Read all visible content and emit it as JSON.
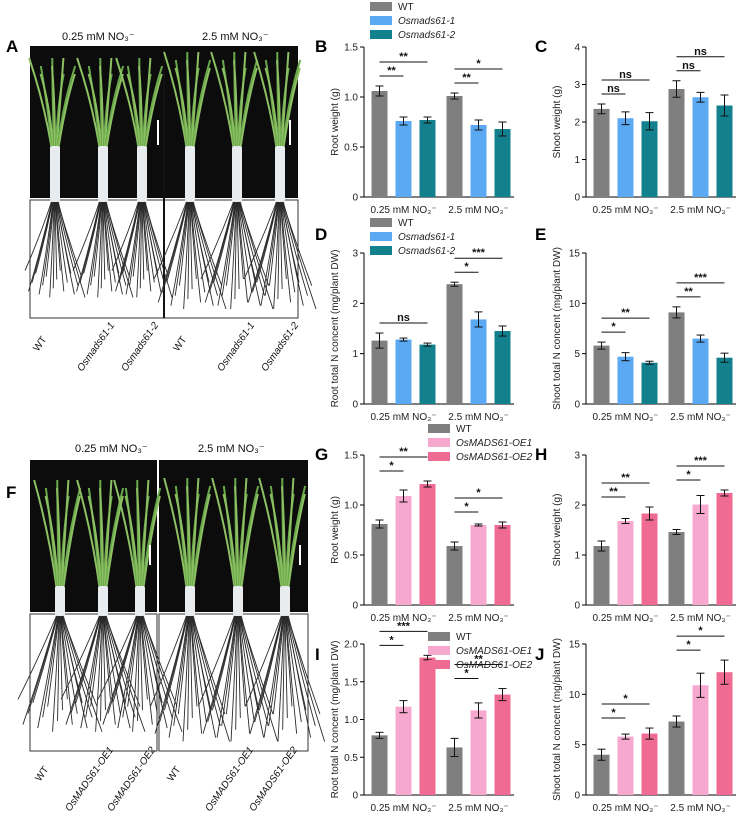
{
  "panels": {
    "A": {
      "letter": "A",
      "conditions": [
        "0.25 mM NO₃⁻",
        "2.5 mM NO₃⁻"
      ],
      "genotypes": [
        "WT",
        "Osmads61-1",
        "Osmads61-2"
      ]
    },
    "F": {
      "letter": "F",
      "conditions": [
        "0.25 mM NO₃⁻",
        "2.5 mM NO₃⁻"
      ],
      "genotypes": [
        "WT",
        "OsMADS61-OE1",
        "OsMADS61-OE2"
      ]
    }
  },
  "legend_top": [
    "WT",
    "Osmads61-1",
    "Osmads61-2"
  ],
  "legend_bottom": [
    "WT",
    "OsMADS61-OE1",
    "OsMADS61-OE2"
  ],
  "colors": {
    "top": [
      "#7f7f7f",
      "#5aa9f2",
      "#12808d"
    ],
    "bottom": [
      "#7f7f7f",
      "#f7a8cf",
      "#f06b94"
    ]
  },
  "chart_data": [
    {
      "id": "B",
      "type": "bar",
      "letter": "B",
      "categories": [
        "0.25 mM NO₃⁻",
        "2.5 mM NO₃⁻"
      ],
      "ylabel": "Root weight (g)",
      "ylim": [
        0,
        1.5
      ],
      "yticks": [
        "0",
        "0.5",
        "1.0",
        "1.5"
      ],
      "legend": true,
      "series": [
        {
          "name": "WT",
          "values": [
            1.06,
            1.01
          ],
          "err": [
            0.05,
            0.03
          ]
        },
        {
          "name": "Osmads61-1",
          "values": [
            0.76,
            0.72
          ],
          "err": [
            0.04,
            0.05
          ]
        },
        {
          "name": "Osmads61-2",
          "values": [
            0.77,
            0.68
          ],
          "err": [
            0.03,
            0.07
          ]
        }
      ],
      "sig": [
        {
          "group": 0,
          "to": 1,
          "label": "**"
        },
        {
          "group": 0,
          "to": 2,
          "label": "**"
        },
        {
          "group": 1,
          "to": 1,
          "label": "**"
        },
        {
          "group": 1,
          "to": 2,
          "label": "*"
        }
      ]
    },
    {
      "id": "C",
      "type": "bar",
      "letter": "C",
      "categories": [
        "0.25 mM NO₃⁻",
        "2.5 mM NO₃⁻"
      ],
      "ylabel": "Shoot weight (g)",
      "ylim": [
        0,
        4
      ],
      "yticks": [
        "0",
        "1",
        "2",
        "3",
        "4"
      ],
      "legend": false,
      "series": [
        {
          "name": "WT",
          "values": [
            2.35,
            2.88
          ],
          "err": [
            0.13,
            0.22
          ]
        },
        {
          "name": "Osmads61-1",
          "values": [
            2.1,
            2.66
          ],
          "err": [
            0.17,
            0.13
          ]
        },
        {
          "name": "Osmads61-2",
          "values": [
            2.02,
            2.44
          ],
          "err": [
            0.23,
            0.28
          ]
        }
      ],
      "sig": [
        {
          "group": 0,
          "to": 1,
          "label": "ns"
        },
        {
          "group": 0,
          "to": 2,
          "label": "ns"
        },
        {
          "group": 1,
          "to": 1,
          "label": "ns"
        },
        {
          "group": 1,
          "to": 2,
          "label": "ns"
        }
      ]
    },
    {
      "id": "D",
      "type": "bar",
      "letter": "D",
      "categories": [
        "0.25 mM NO₃⁻",
        "2.5 mM NO₃⁻"
      ],
      "ylabel": "Root total N concent (mg/plant DW)",
      "ylim": [
        0,
        3
      ],
      "yticks": [
        "0",
        "1",
        "2",
        "3"
      ],
      "legend": true,
      "series": [
        {
          "name": "WT",
          "values": [
            1.26,
            2.38
          ],
          "err": [
            0.15,
            0.04
          ]
        },
        {
          "name": "Osmads61-1",
          "values": [
            1.28,
            1.68
          ],
          "err": [
            0.03,
            0.15
          ]
        },
        {
          "name": "Osmads61-2",
          "values": [
            1.18,
            1.45
          ],
          "err": [
            0.03,
            0.1
          ]
        }
      ],
      "sig": [
        {
          "group": 0,
          "to": 2,
          "label": "ns"
        },
        {
          "group": 1,
          "to": 1,
          "label": "*"
        },
        {
          "group": 1,
          "to": 2,
          "label": "***"
        }
      ]
    },
    {
      "id": "E",
      "type": "bar",
      "letter": "E",
      "categories": [
        "0.25 mM NO₃⁻",
        "2.5 mM NO₃⁻"
      ],
      "ylabel": "Shoot total N concent (mg/plant DW)",
      "ylim": [
        0,
        15
      ],
      "yticks": [
        "0",
        "5",
        "10",
        "15"
      ],
      "legend": false,
      "series": [
        {
          "name": "WT",
          "values": [
            5.8,
            9.1
          ],
          "err": [
            0.35,
            0.55
          ]
        },
        {
          "name": "Osmads61-1",
          "values": [
            4.7,
            6.5
          ],
          "err": [
            0.4,
            0.35
          ]
        },
        {
          "name": "Osmads61-2",
          "values": [
            4.1,
            4.6
          ],
          "err": [
            0.15,
            0.45
          ]
        }
      ],
      "sig": [
        {
          "group": 0,
          "to": 1,
          "label": "*"
        },
        {
          "group": 0,
          "to": 2,
          "label": "**"
        },
        {
          "group": 1,
          "to": 1,
          "label": "**"
        },
        {
          "group": 1,
          "to": 2,
          "label": "***"
        }
      ]
    },
    {
      "id": "G",
      "type": "bar",
      "letter": "G",
      "categories": [
        "0.25 mM NO₃⁻",
        "2.5 mM NO₃⁻"
      ],
      "ylabel": "Root weight (g)",
      "ylim": [
        0,
        1.5
      ],
      "yticks": [
        "0",
        "0.5",
        "1.0",
        "1.5"
      ],
      "legend": true,
      "series": [
        {
          "name": "WT",
          "values": [
            0.81,
            0.59
          ],
          "err": [
            0.04,
            0.04
          ]
        },
        {
          "name": "OsMADS61-OE1",
          "values": [
            1.09,
            0.8
          ],
          "err": [
            0.06,
            0.01
          ]
        },
        {
          "name": "OsMADS61-OE2",
          "values": [
            1.21,
            0.8
          ],
          "err": [
            0.03,
            0.03
          ]
        }
      ],
      "sig": [
        {
          "group": 0,
          "to": 1,
          "label": "*"
        },
        {
          "group": 0,
          "to": 2,
          "label": "**"
        },
        {
          "group": 1,
          "to": 1,
          "label": "*"
        },
        {
          "group": 1,
          "to": 2,
          "label": "*"
        }
      ]
    },
    {
      "id": "H",
      "type": "bar",
      "letter": "H",
      "categories": [
        "0.25 mM NO₃⁻",
        "2.5 mM NO₃⁻"
      ],
      "ylabel": "Shoot weight (g)",
      "ylim": [
        0,
        3
      ],
      "yticks": [
        "0",
        "1",
        "2",
        "3"
      ],
      "legend": false,
      "series": [
        {
          "name": "WT",
          "values": [
            1.18,
            1.46
          ],
          "err": [
            0.1,
            0.05
          ]
        },
        {
          "name": "OsMADS61-OE1",
          "values": [
            1.68,
            2.01
          ],
          "err": [
            0.05,
            0.18
          ]
        },
        {
          "name": "OsMADS61-OE2",
          "values": [
            1.83,
            2.24
          ],
          "err": [
            0.13,
            0.06
          ]
        }
      ],
      "sig": [
        {
          "group": 0,
          "to": 1,
          "label": "**"
        },
        {
          "group": 0,
          "to": 2,
          "label": "**"
        },
        {
          "group": 1,
          "to": 1,
          "label": "*"
        },
        {
          "group": 1,
          "to": 2,
          "label": "***"
        }
      ]
    },
    {
      "id": "I",
      "type": "bar",
      "letter": "I",
      "categories": [
        "0.25 mM NO₃⁻",
        "2.5 mM NO₃⁻"
      ],
      "ylabel": "Root total N concent (mg/plant DW)",
      "ylim": [
        0,
        2.0
      ],
      "yticks": [
        "0",
        "0.5",
        "1.0",
        "1.5",
        "2.0"
      ],
      "legend": true,
      "series": [
        {
          "name": "WT",
          "values": [
            0.79,
            0.63
          ],
          "err": [
            0.04,
            0.12
          ]
        },
        {
          "name": "OsMADS61-OE1",
          "values": [
            1.17,
            1.12
          ],
          "err": [
            0.08,
            0.1
          ]
        },
        {
          "name": "OsMADS61-OE2",
          "values": [
            1.82,
            1.33
          ],
          "err": [
            0.03,
            0.08
          ]
        }
      ],
      "sig": [
        {
          "group": 0,
          "to": 1,
          "label": "*"
        },
        {
          "group": 0,
          "to": 2,
          "label": "***"
        },
        {
          "group": 1,
          "to": 1,
          "label": "*"
        },
        {
          "group": 1,
          "to": 2,
          "label": "**"
        }
      ]
    },
    {
      "id": "J",
      "type": "bar",
      "letter": "J",
      "categories": [
        "0.25 mM NO₃⁻",
        "2.5 mM NO₃⁻"
      ],
      "ylabel": "Shoot total N concent (mg/plant DW)",
      "ylim": [
        0,
        15
      ],
      "yticks": [
        "0",
        "5",
        "10",
        "15"
      ],
      "legend": false,
      "series": [
        {
          "name": "WT",
          "values": [
            4.0,
            7.3
          ],
          "err": [
            0.55,
            0.55
          ]
        },
        {
          "name": "OsMADS61-OE1",
          "values": [
            5.8,
            10.9
          ],
          "err": [
            0.25,
            1.2
          ]
        },
        {
          "name": "OsMADS61-OE2",
          "values": [
            6.1,
            12.2
          ],
          "err": [
            0.55,
            1.2
          ]
        }
      ],
      "sig": [
        {
          "group": 0,
          "to": 1,
          "label": "*"
        },
        {
          "group": 0,
          "to": 2,
          "label": "*"
        },
        {
          "group": 1,
          "to": 1,
          "label": "*"
        },
        {
          "group": 1,
          "to": 2,
          "label": "*"
        }
      ]
    }
  ]
}
